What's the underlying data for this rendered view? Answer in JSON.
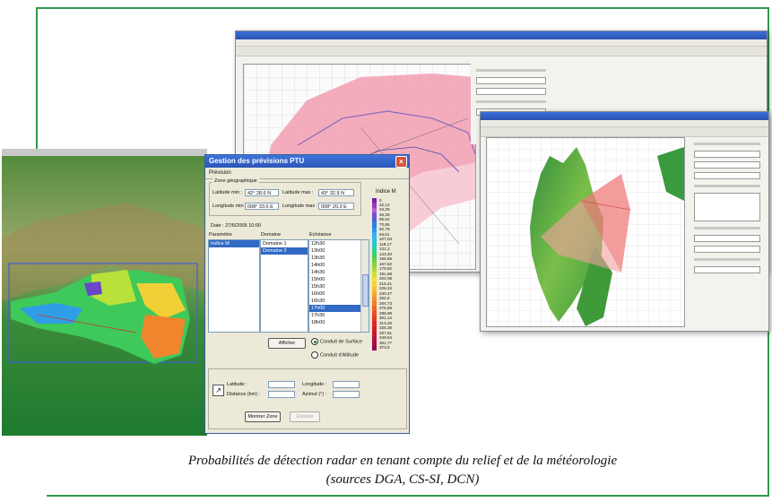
{
  "caption": {
    "line1": "Probabilités de détection radar en tenant compte du relief et de la météorologie",
    "line2": "(sources DGA, CS-SI, DCN)"
  },
  "dialog": {
    "title": "Gestion des prévisions PTU",
    "close_symbol": "×",
    "tab": "Prévision",
    "zone_group_label": "Zone géographique",
    "lat_min_label": "Latitude min :",
    "lat_min_value": "42° 28.6 N",
    "lat_max_label": "Latitude max :",
    "lat_max_value": "43° 32.9 N",
    "lon_min_label": "Longitude min :",
    "lon_min_value": "008° 33.6 E",
    "lon_max_label": "Longitude max :",
    "lon_max_value": "008° 20.3 E",
    "date_label": "Date : 27/6/2005 10:00",
    "columns": {
      "parametre": "Paramètre",
      "domaine": "Domaine",
      "echeance": "Echéance"
    },
    "parametre_items": [
      {
        "label": "Indice M",
        "selected": true
      }
    ],
    "domaine_items": [
      {
        "label": "Domaine 1",
        "selected": false
      },
      {
        "label": "Domaine 2",
        "selected": true
      }
    ],
    "echeance_items": [
      {
        "label": "12h30",
        "selected": false
      },
      {
        "label": "13h00",
        "selected": false
      },
      {
        "label": "13h30",
        "selected": false
      },
      {
        "label": "14h00",
        "selected": false
      },
      {
        "label": "14h30",
        "selected": false
      },
      {
        "label": "15h00",
        "selected": false
      },
      {
        "label": "15h30",
        "selected": false
      },
      {
        "label": "16h00",
        "selected": false
      },
      {
        "label": "16h30",
        "selected": false
      },
      {
        "label": "17h00",
        "selected": true
      },
      {
        "label": "17h30",
        "selected": false
      },
      {
        "label": "18h00",
        "selected": false
      }
    ],
    "afficher_button": "Afficher",
    "radio_surface": "Conduit de Surface",
    "radio_altitude": "Conduit d'Altitude",
    "legend_title": "Indice M",
    "legend_values": [
      "0",
      "22,13",
      "34,29",
      "46,26",
      "58,62",
      "70,85",
      "82,79",
      "94,61",
      "107,04",
      "119,17",
      "131,3",
      "143,40",
      "155,56",
      "167,62",
      "179,82",
      "191,88",
      "204,08",
      "216,21",
      "228,34",
      "240,47",
      "252,6",
      "264,73",
      "276,86",
      "288,99",
      "301,12",
      "313,25",
      "325,38",
      "337,51",
      "349,64",
      "361,77",
      "373,9"
    ],
    "legend_colors": [
      "#7a1fa8",
      "#9a3ac0",
      "#b85cd6",
      "#7a4fd8",
      "#4a64e0",
      "#2f7ee6",
      "#2d96ee",
      "#39aef2",
      "#27c0e6",
      "#22cdc8",
      "#2dcf9a",
      "#3ccd6a",
      "#5cd04a",
      "#86d43c",
      "#aadb36",
      "#cde234",
      "#e8e335",
      "#f5d534",
      "#f7c030",
      "#f6a82d",
      "#f4912a",
      "#f27a28",
      "#ee6226",
      "#ea4c24",
      "#e53822",
      "#df2622",
      "#d61e2a",
      "#c91634",
      "#ba1040",
      "#a80a48",
      "#940652"
    ],
    "latitude_label": "Latitude :",
    "longitude_label": "Longitude :",
    "distance_label": "Distance (km) :",
    "azimut_label": "Azimut (°) :",
    "montrer_zone_button": "Montrer Zone",
    "extraire_button": "Extraire"
  }
}
